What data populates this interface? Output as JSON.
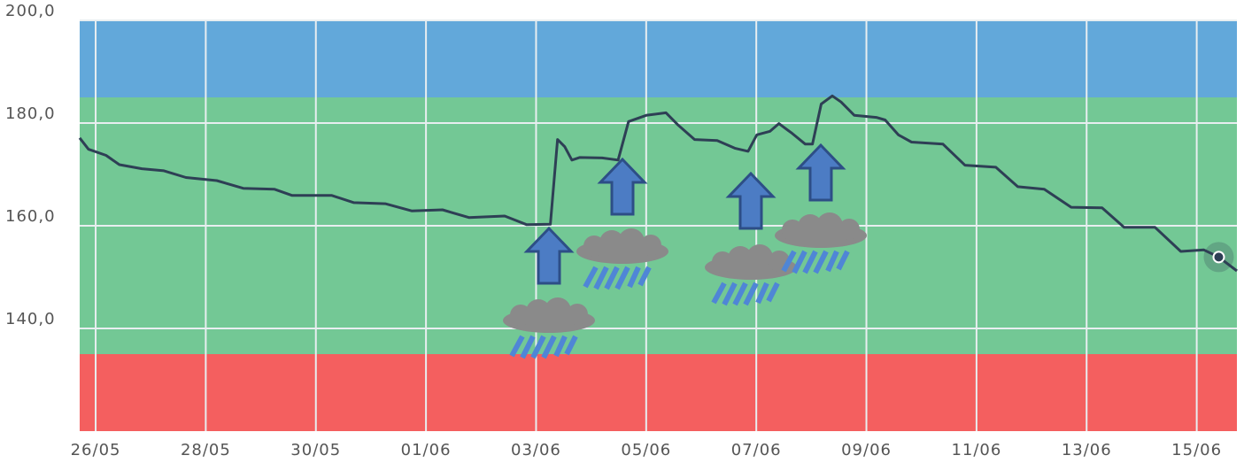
{
  "chart_data": {
    "type": "line",
    "bands": [
      {
        "from": 185,
        "to": 200,
        "color": "#62a8da"
      },
      {
        "from": 135,
        "to": 185,
        "color": "#73c895"
      },
      {
        "from": 120,
        "to": 135,
        "color": "#f45f5f"
      }
    ],
    "x": [
      -0.29,
      -0.13,
      0.19,
      0.43,
      0.84,
      1.24,
      1.64,
      2.2,
      2.68,
      3.25,
      3.57,
      4.29,
      4.69,
      5.26,
      5.74,
      6.3,
      6.78,
      7.43,
      7.83,
      8.26,
      8.39,
      8.52,
      8.65,
      8.79,
      9.2,
      9.49,
      9.68,
      10.0,
      10.36,
      10.57,
      10.88,
      11.29,
      11.61,
      11.85,
      12.01,
      12.25,
      12.41,
      12.65,
      12.89,
      13.02,
      13.18,
      13.38,
      13.54,
      13.78,
      14.18,
      14.34,
      14.58,
      14.82,
      15.39,
      15.79,
      16.35,
      16.75,
      17.23,
      17.72,
      18.28,
      18.68,
      19.24,
      19.71,
      20.13,
      20.4,
      20.73
    ],
    "series": [
      {
        "color": "#2e3f55",
        "values": [
          177.1,
          174.9,
          173.7,
          171.9,
          171.1,
          170.7,
          169.4,
          168.8,
          167.3,
          167.1,
          165.9,
          165.9,
          164.5,
          164.3,
          162.9,
          163.1,
          161.6,
          161.9,
          160.2,
          160.3,
          176.8,
          175.4,
          172.8,
          173.3,
          173.2,
          172.8,
          180.3,
          181.5,
          182.0,
          179.7,
          176.8,
          176.6,
          175.1,
          174.5,
          177.7,
          178.4,
          179.9,
          178.0,
          175.9,
          175.9,
          183.7,
          185.3,
          184.1,
          181.5,
          181.1,
          180.6,
          177.7,
          176.3,
          175.9,
          171.8,
          171.4,
          167.6,
          167.1,
          163.6,
          163.5,
          159.7,
          159.7,
          155.0,
          155.3,
          153.9,
          151.2
        ]
      }
    ],
    "xlim": [
      -0.29,
      20.73
    ],
    "xticks": [
      {
        "value": 0,
        "label": "26/05"
      },
      {
        "value": 2,
        "label": "28/05"
      },
      {
        "value": 4,
        "label": "30/05"
      },
      {
        "value": 6,
        "label": "01/06"
      },
      {
        "value": 8,
        "label": "03/06"
      },
      {
        "value": 10,
        "label": "05/06"
      },
      {
        "value": 12,
        "label": "07/06"
      },
      {
        "value": 14,
        "label": "09/06"
      },
      {
        "value": 16,
        "label": "11/06"
      },
      {
        "value": 18,
        "label": "13/06"
      },
      {
        "value": 20,
        "label": "15/06"
      }
    ],
    "ylim": [
      120,
      200
    ],
    "yticks": [
      {
        "value": 140,
        "label": "140,0"
      },
      {
        "value": 160,
        "label": "160,0"
      },
      {
        "value": 180,
        "label": "180,0"
      },
      {
        "value": 200,
        "label": "200,0"
      }
    ],
    "grid": true
  }
}
